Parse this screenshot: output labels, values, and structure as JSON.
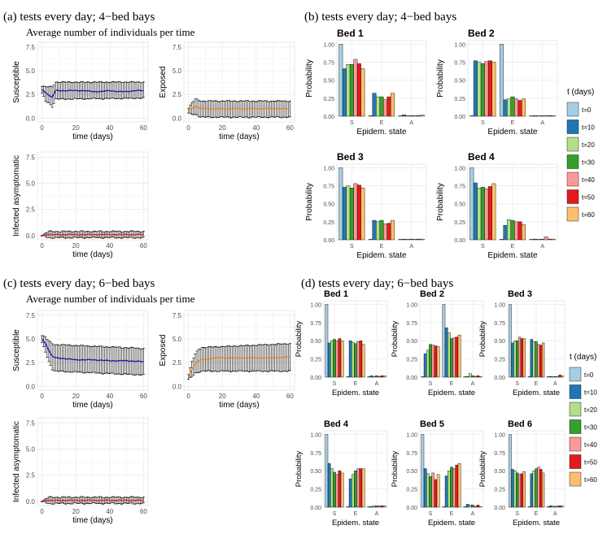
{
  "colors": {
    "t=0": "#a6cee3",
    "t=10": "#1f78b4",
    "t=20": "#b2df8a",
    "t=30": "#33a02c",
    "t=40": "#fb9a99",
    "t=50": "#e31a1c",
    "t=60": "#fdbf6f",
    "susceptible_line": "#1f1fa8",
    "exposed_line": "#e08a1e",
    "infected_line": "#d62728",
    "panel_bg": "#ffffff",
    "grid": "#ebebeb",
    "errorbar": "#000000"
  },
  "legend": {
    "title": "t (days)",
    "labels": [
      "t=0",
      "t=10",
      "t=20",
      "t=30",
      "t=40",
      "t=50",
      "t=60"
    ]
  },
  "chart_data": [
    {
      "id": "a",
      "type": "line",
      "title": "(a) tests every day; 4−bed bays",
      "subtitle": "Average number of individuals per time",
      "panels": [
        {
          "ylabel": "Susceptible",
          "xlabel": "time (days)",
          "yticks": [
            "0.0",
            "2.5",
            "5.0",
            "7.5"
          ],
          "ylim": [
            0,
            8
          ],
          "xticks": [
            "0",
            "20",
            "40",
            "60"
          ],
          "xlim": [
            0,
            60
          ],
          "mean": [
            [
              0,
              3.0
            ],
            [
              2,
              2.7
            ],
            [
              4,
              2.4
            ],
            [
              6,
              2.2
            ],
            [
              8,
              2.9
            ],
            [
              10,
              2.9
            ],
            [
              15,
              2.9
            ],
            [
              20,
              2.9
            ],
            [
              25,
              2.9
            ],
            [
              30,
              2.8
            ],
            [
              35,
              2.8
            ],
            [
              40,
              2.9
            ],
            [
              45,
              2.8
            ],
            [
              50,
              2.8
            ],
            [
              55,
              2.9
            ],
            [
              60,
              2.9
            ]
          ],
          "lower": [
            [
              0,
              2.6
            ],
            [
              2,
              1.8
            ],
            [
              4,
              1.6
            ],
            [
              6,
              1.2
            ],
            [
              8,
              2.0
            ],
            [
              60,
              2.1
            ]
          ],
          "upper": [
            [
              0,
              3.4
            ],
            [
              2,
              3.3
            ],
            [
              4,
              3.3
            ],
            [
              6,
              3.3
            ],
            [
              8,
              3.8
            ],
            [
              60,
              3.8
            ]
          ]
        },
        {
          "ylabel": "Exposed",
          "xlabel": "time (days)",
          "yticks": [
            "0.0",
            "2.5",
            "5.0",
            "7.5"
          ],
          "ylim": [
            0,
            8
          ],
          "xticks": [
            "0",
            "20",
            "40",
            "60"
          ],
          "xlim": [
            0,
            60
          ],
          "mean": [
            [
              0,
              0.8
            ],
            [
              2,
              1.0
            ],
            [
              4,
              1.2
            ],
            [
              6,
              1.1
            ],
            [
              8,
              1.0
            ],
            [
              20,
              1.0
            ],
            [
              40,
              1.0
            ],
            [
              60,
              1.0
            ]
          ],
          "lower": [
            [
              0,
              0.5
            ],
            [
              2,
              0.4
            ],
            [
              4,
              0.4
            ],
            [
              6,
              0.2
            ],
            [
              8,
              0.1
            ],
            [
              60,
              0.1
            ]
          ],
          "upper": [
            [
              0,
              1.1
            ],
            [
              2,
              1.6
            ],
            [
              4,
              2.0
            ],
            [
              6,
              1.9
            ],
            [
              8,
              1.8
            ],
            [
              60,
              1.8
            ]
          ]
        },
        {
          "ylabel": "Infected asymptomatic",
          "xlabel": "time (days)",
          "yticks": [
            "0.0",
            "2.5",
            "5.0",
            "7.5"
          ],
          "ylim": [
            0,
            8
          ],
          "xticks": [
            "0",
            "20",
            "40",
            "60"
          ],
          "xlim": [
            0,
            60
          ],
          "mean": [
            [
              0,
              0.0
            ],
            [
              2,
              0.05
            ],
            [
              4,
              0.1
            ],
            [
              6,
              0.1
            ],
            [
              8,
              0.1
            ],
            [
              60,
              0.1
            ]
          ],
          "lower": [
            [
              0,
              0.0
            ],
            [
              2,
              -0.1
            ],
            [
              4,
              -0.2
            ],
            [
              60,
              -0.2
            ]
          ],
          "upper": [
            [
              0,
              0.0
            ],
            [
              2,
              0.2
            ],
            [
              4,
              0.4
            ],
            [
              60,
              0.4
            ]
          ]
        }
      ]
    },
    {
      "id": "b",
      "type": "bar",
      "title": "(b) tests every day; 4−bed bays",
      "xlabel": "Epidem. state",
      "ylabel": "Probability",
      "categories": [
        "S",
        "E",
        "A"
      ],
      "yticks": [
        "0.00",
        "0.25",
        "0.50",
        "0.75",
        "1.00"
      ],
      "ylim": [
        0,
        1
      ],
      "beds": [
        {
          "name": "Bed 1",
          "values": [
            [
              1.0,
              0.66,
              0.72,
              0.72,
              0.79,
              0.73,
              0.66
            ],
            [
              0.0,
              0.32,
              0.27,
              0.27,
              0.23,
              0.27,
              0.32
            ],
            [
              0.0,
              0.02,
              0.01,
              0.01,
              0.0,
              0.0,
              0.02
            ]
          ]
        },
        {
          "name": "Bed 2",
          "values": [
            [
              0.0,
              0.77,
              0.75,
              0.73,
              0.76,
              0.77,
              0.75
            ],
            [
              1.0,
              0.23,
              0.24,
              0.27,
              0.24,
              0.22,
              0.24
            ],
            [
              0.0,
              0.0,
              0.01,
              0.0,
              0.0,
              0.01,
              0.01
            ]
          ]
        },
        {
          "name": "Bed 3",
          "values": [
            [
              1.0,
              0.73,
              0.75,
              0.72,
              0.78,
              0.76,
              0.72
            ],
            [
              0.0,
              0.27,
              0.25,
              0.27,
              0.22,
              0.23,
              0.27
            ],
            [
              0.0,
              0.0,
              0.0,
              0.01,
              0.0,
              0.01,
              0.01
            ]
          ]
        },
        {
          "name": "Bed 4",
          "values": [
            [
              1.0,
              0.79,
              0.72,
              0.73,
              0.71,
              0.74,
              0.78
            ],
            [
              0.0,
              0.2,
              0.28,
              0.27,
              0.25,
              0.25,
              0.21
            ],
            [
              0.0,
              0.01,
              0.0,
              0.0,
              0.04,
              0.01,
              0.01
            ]
          ]
        }
      ]
    },
    {
      "id": "c",
      "type": "line",
      "title": "(c) tests every day; 6−bed bays",
      "subtitle": "Average number of individuals per time",
      "panels": [
        {
          "ylabel": "Susceptible",
          "xlabel": "time (days)",
          "yticks": [
            "0.0",
            "2.5",
            "5.0",
            "7.5"
          ],
          "ylim": [
            0,
            8
          ],
          "xticks": [
            "0",
            "20",
            "40",
            "60"
          ],
          "xlim": [
            0,
            60
          ],
          "mean": [
            [
              0,
              5.0
            ],
            [
              2,
              4.5
            ],
            [
              4,
              3.8
            ],
            [
              6,
              3.2
            ],
            [
              8,
              3.0
            ],
            [
              15,
              2.9
            ],
            [
              20,
              2.8
            ],
            [
              30,
              2.8
            ],
            [
              40,
              2.7
            ],
            [
              50,
              2.7
            ],
            [
              60,
              2.6
            ]
          ],
          "lower": [
            [
              0,
              4.6
            ],
            [
              2,
              3.6
            ],
            [
              4,
              2.6
            ],
            [
              6,
              1.8
            ],
            [
              8,
              1.6
            ],
            [
              60,
              1.2
            ]
          ],
          "upper": [
            [
              0,
              5.4
            ],
            [
              2,
              5.2
            ],
            [
              4,
              4.8
            ],
            [
              6,
              4.5
            ],
            [
              8,
              4.4
            ],
            [
              60,
              4.0
            ]
          ]
        },
        {
          "ylabel": "Exposed",
          "xlabel": "time (days)",
          "yticks": [
            "0.0",
            "2.5",
            "5.0",
            "7.5"
          ],
          "ylim": [
            0,
            8
          ],
          "xticks": [
            "0",
            "20",
            "40",
            "60"
          ],
          "xlim": [
            0,
            60
          ],
          "mean": [
            [
              0,
              1.0
            ],
            [
              2,
              1.8
            ],
            [
              4,
              2.4
            ],
            [
              6,
              2.7
            ],
            [
              8,
              2.8
            ],
            [
              15,
              3.0
            ],
            [
              20,
              3.0
            ],
            [
              30,
              3.0
            ],
            [
              40,
              3.0
            ],
            [
              50,
              3.0
            ],
            [
              60,
              3.1
            ]
          ],
          "lower": [
            [
              0,
              0.7
            ],
            [
              2,
              1.0
            ],
            [
              4,
              1.4
            ],
            [
              6,
              1.5
            ],
            [
              8,
              1.6
            ],
            [
              60,
              1.6
            ]
          ],
          "upper": [
            [
              0,
              1.3
            ],
            [
              2,
              2.6
            ],
            [
              4,
              3.4
            ],
            [
              6,
              3.9
            ],
            [
              8,
              4.1
            ],
            [
              60,
              4.5
            ]
          ]
        },
        {
          "ylabel": "Infected asymptomatic",
          "xlabel": "time (days)",
          "yticks": [
            "0.0",
            "2.5",
            "5.0",
            "7.5"
          ],
          "ylim": [
            0,
            8
          ],
          "xticks": [
            "0",
            "20",
            "40",
            "60"
          ],
          "xlim": [
            0,
            60
          ],
          "mean": [
            [
              0,
              0.0
            ],
            [
              2,
              0.05
            ],
            [
              4,
              0.1
            ],
            [
              6,
              0.1
            ],
            [
              8,
              0.1
            ],
            [
              60,
              0.1
            ]
          ],
          "lower": [
            [
              0,
              0.0
            ],
            [
              2,
              -0.1
            ],
            [
              4,
              -0.2
            ],
            [
              60,
              -0.2
            ]
          ],
          "upper": [
            [
              0,
              0.0
            ],
            [
              2,
              0.2
            ],
            [
              4,
              0.4
            ],
            [
              60,
              0.4
            ]
          ]
        }
      ]
    },
    {
      "id": "d",
      "type": "bar",
      "title": "(d) tests every day; 6−bed bays",
      "xlabel": "Epidem. state",
      "ylabel": "Probability",
      "categories": [
        "S",
        "E",
        "A"
      ],
      "yticks": [
        "0.00",
        "0.25",
        "0.50",
        "0.75",
        "1.00"
      ],
      "ylim": [
        0,
        1
      ],
      "beds": [
        {
          "name": "Bed 1",
          "values": [
            [
              1.0,
              0.47,
              0.5,
              0.52,
              0.5,
              0.53,
              0.5
            ],
            [
              0.0,
              0.5,
              0.48,
              0.46,
              0.49,
              0.5,
              0.45
            ],
            [
              0.0,
              0.02,
              0.01,
              0.02,
              0.01,
              0.02,
              0.02
            ]
          ]
        },
        {
          "name": "Bed 2",
          "values": [
            [
              0.0,
              0.32,
              0.37,
              0.45,
              0.44,
              0.43,
              0.42
            ],
            [
              1.0,
              0.68,
              0.61,
              0.53,
              0.54,
              0.55,
              0.58
            ],
            [
              0.0,
              0.0,
              0.05,
              0.02,
              0.01,
              0.02,
              0.0
            ]
          ]
        },
        {
          "name": "Bed 3",
          "values": [
            [
              1.0,
              0.47,
              0.5,
              0.5,
              0.55,
              0.53,
              0.53
            ],
            [
              0.0,
              0.52,
              0.49,
              0.49,
              0.45,
              0.44,
              0.47
            ],
            [
              0.0,
              0.01,
              0.0,
              0.0,
              0.0,
              0.03,
              0.02
            ]
          ]
        },
        {
          "name": "Bed 4",
          "values": [
            [
              1.0,
              0.6,
              0.53,
              0.48,
              0.45,
              0.5,
              0.47
            ],
            [
              0.0,
              0.39,
              0.45,
              0.5,
              0.53,
              0.53,
              0.53
            ],
            [
              0.0,
              0.01,
              0.02,
              0.02,
              0.02,
              0.02,
              0.02
            ]
          ]
        },
        {
          "name": "Bed 5",
          "values": [
            [
              1.0,
              0.53,
              0.46,
              0.42,
              0.47,
              0.38,
              0.45
            ],
            [
              0.0,
              0.43,
              0.5,
              0.55,
              0.53,
              0.58,
              0.6
            ],
            [
              0.0,
              0.04,
              0.03,
              0.03,
              0.0,
              0.03,
              0.01
            ]
          ]
        },
        {
          "name": "Bed 6",
          "values": [
            [
              1.0,
              0.52,
              0.5,
              0.47,
              0.45,
              0.46,
              0.49
            ],
            [
              0.0,
              0.46,
              0.5,
              0.53,
              0.55,
              0.52,
              0.47
            ],
            [
              0.0,
              0.02,
              0.02,
              0.0,
              0.02,
              0.02,
              0.02
            ]
          ]
        }
      ]
    }
  ]
}
